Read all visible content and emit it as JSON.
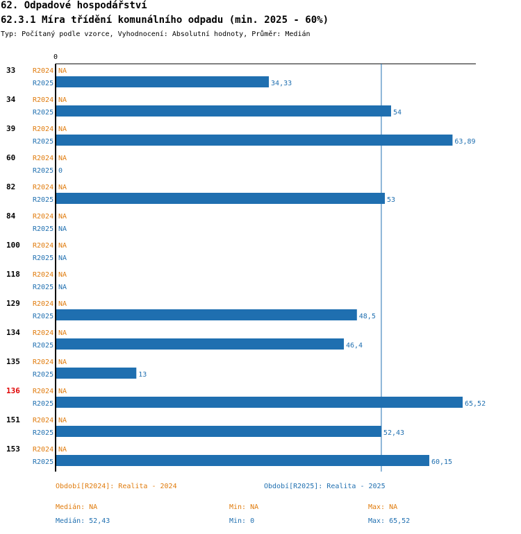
{
  "header": {
    "section": "62. Odpadové hospodářství",
    "indicator": "62.3.1 Míra třídění komunálního odpadu (min. 2025 - 60%)",
    "meta": "Typ: Počítaný podle vzorce, Vyhodnocení: Absolutní hodnoty, Průměr: Medián"
  },
  "chart_data": {
    "type": "bar",
    "orientation": "horizontal",
    "axis_zero_label": "0",
    "xlim": [
      0,
      65.52
    ],
    "reference_line": {
      "value": 52.43,
      "label": "Medián R2025"
    },
    "highlight_category": "136",
    "categories": [
      "33",
      "34",
      "39",
      "60",
      "82",
      "84",
      "100",
      "118",
      "129",
      "134",
      "135",
      "136",
      "151",
      "153"
    ],
    "series": [
      {
        "name": "R2024",
        "values": [
          null,
          null,
          null,
          null,
          null,
          null,
          null,
          null,
          null,
          null,
          null,
          null,
          null,
          null
        ],
        "labels": [
          "NA",
          "NA",
          "NA",
          "NA",
          "NA",
          "NA",
          "NA",
          "NA",
          "NA",
          "NA",
          "NA",
          "NA",
          "NA",
          "NA"
        ]
      },
      {
        "name": "R2025",
        "values": [
          34.33,
          54,
          63.89,
          0,
          53,
          null,
          null,
          null,
          48.5,
          46.4,
          13,
          65.52,
          52.43,
          60.15
        ],
        "labels": [
          "34,33",
          "54",
          "63,89",
          "0",
          "53",
          "NA",
          "NA",
          "NA",
          "48,5",
          "46,4",
          "13",
          "65,52",
          "52,43",
          "60,15"
        ]
      }
    ],
    "colors": {
      "R2024": "#e07b0c",
      "R2025": "#1f6fb0",
      "highlight": "#e00000"
    }
  },
  "legend": {
    "r2024": {
      "period": "Období[R2024]: Realita - 2024",
      "median": "Medián: NA",
      "min": "Min: NA",
      "max": "Max: NA"
    },
    "r2025": {
      "period": "Období[R2025]: Realita - 2025",
      "median": "Medián: 52,43",
      "min": "Min: 0",
      "max": "Max: 65,52"
    }
  }
}
